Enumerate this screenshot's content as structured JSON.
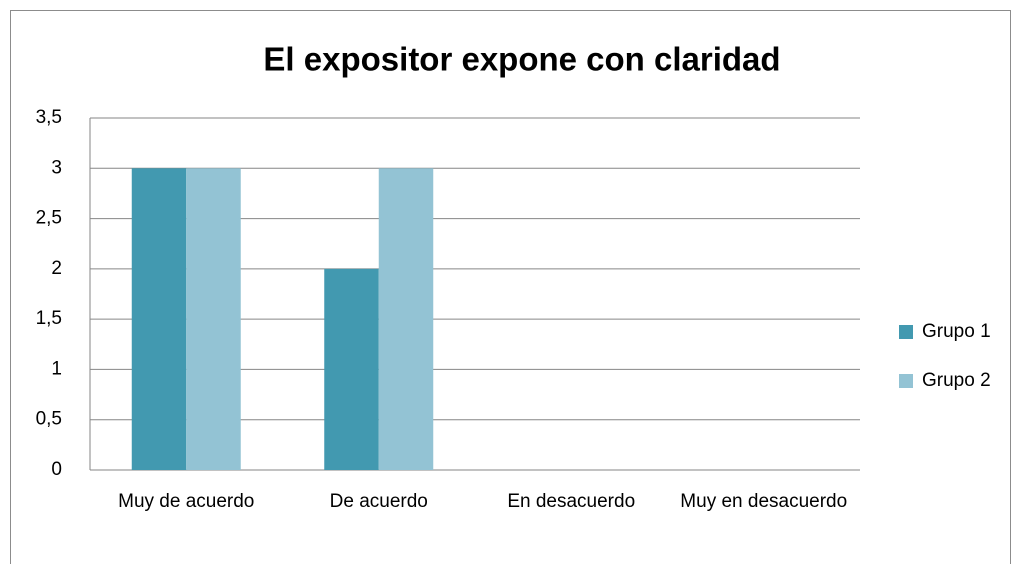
{
  "chart_data": {
    "type": "bar",
    "title": "El expositor expone con claridad",
    "categories": [
      "Muy de acuerdo",
      "De acuerdo",
      "En desacuerdo",
      "Muy en desacuerdo"
    ],
    "series": [
      {
        "name": "Grupo 1",
        "color": "#4299b0",
        "values": [
          3,
          2,
          0,
          0
        ]
      },
      {
        "name": "Grupo 2",
        "color": "#93c3d4",
        "values": [
          3,
          3,
          0,
          0
        ]
      }
    ],
    "ylim": [
      0,
      3.5
    ],
    "yticks": [
      0,
      {
        "value": 0.5,
        "label": "0,5"
      },
      1,
      {
        "value": 1.5,
        "label": "1,5"
      },
      2,
      {
        "value": 2.5,
        "label": "2,5"
      },
      3,
      {
        "value": 3.5,
        "label": "3,5"
      }
    ],
    "grid": true,
    "legend": "right"
  }
}
